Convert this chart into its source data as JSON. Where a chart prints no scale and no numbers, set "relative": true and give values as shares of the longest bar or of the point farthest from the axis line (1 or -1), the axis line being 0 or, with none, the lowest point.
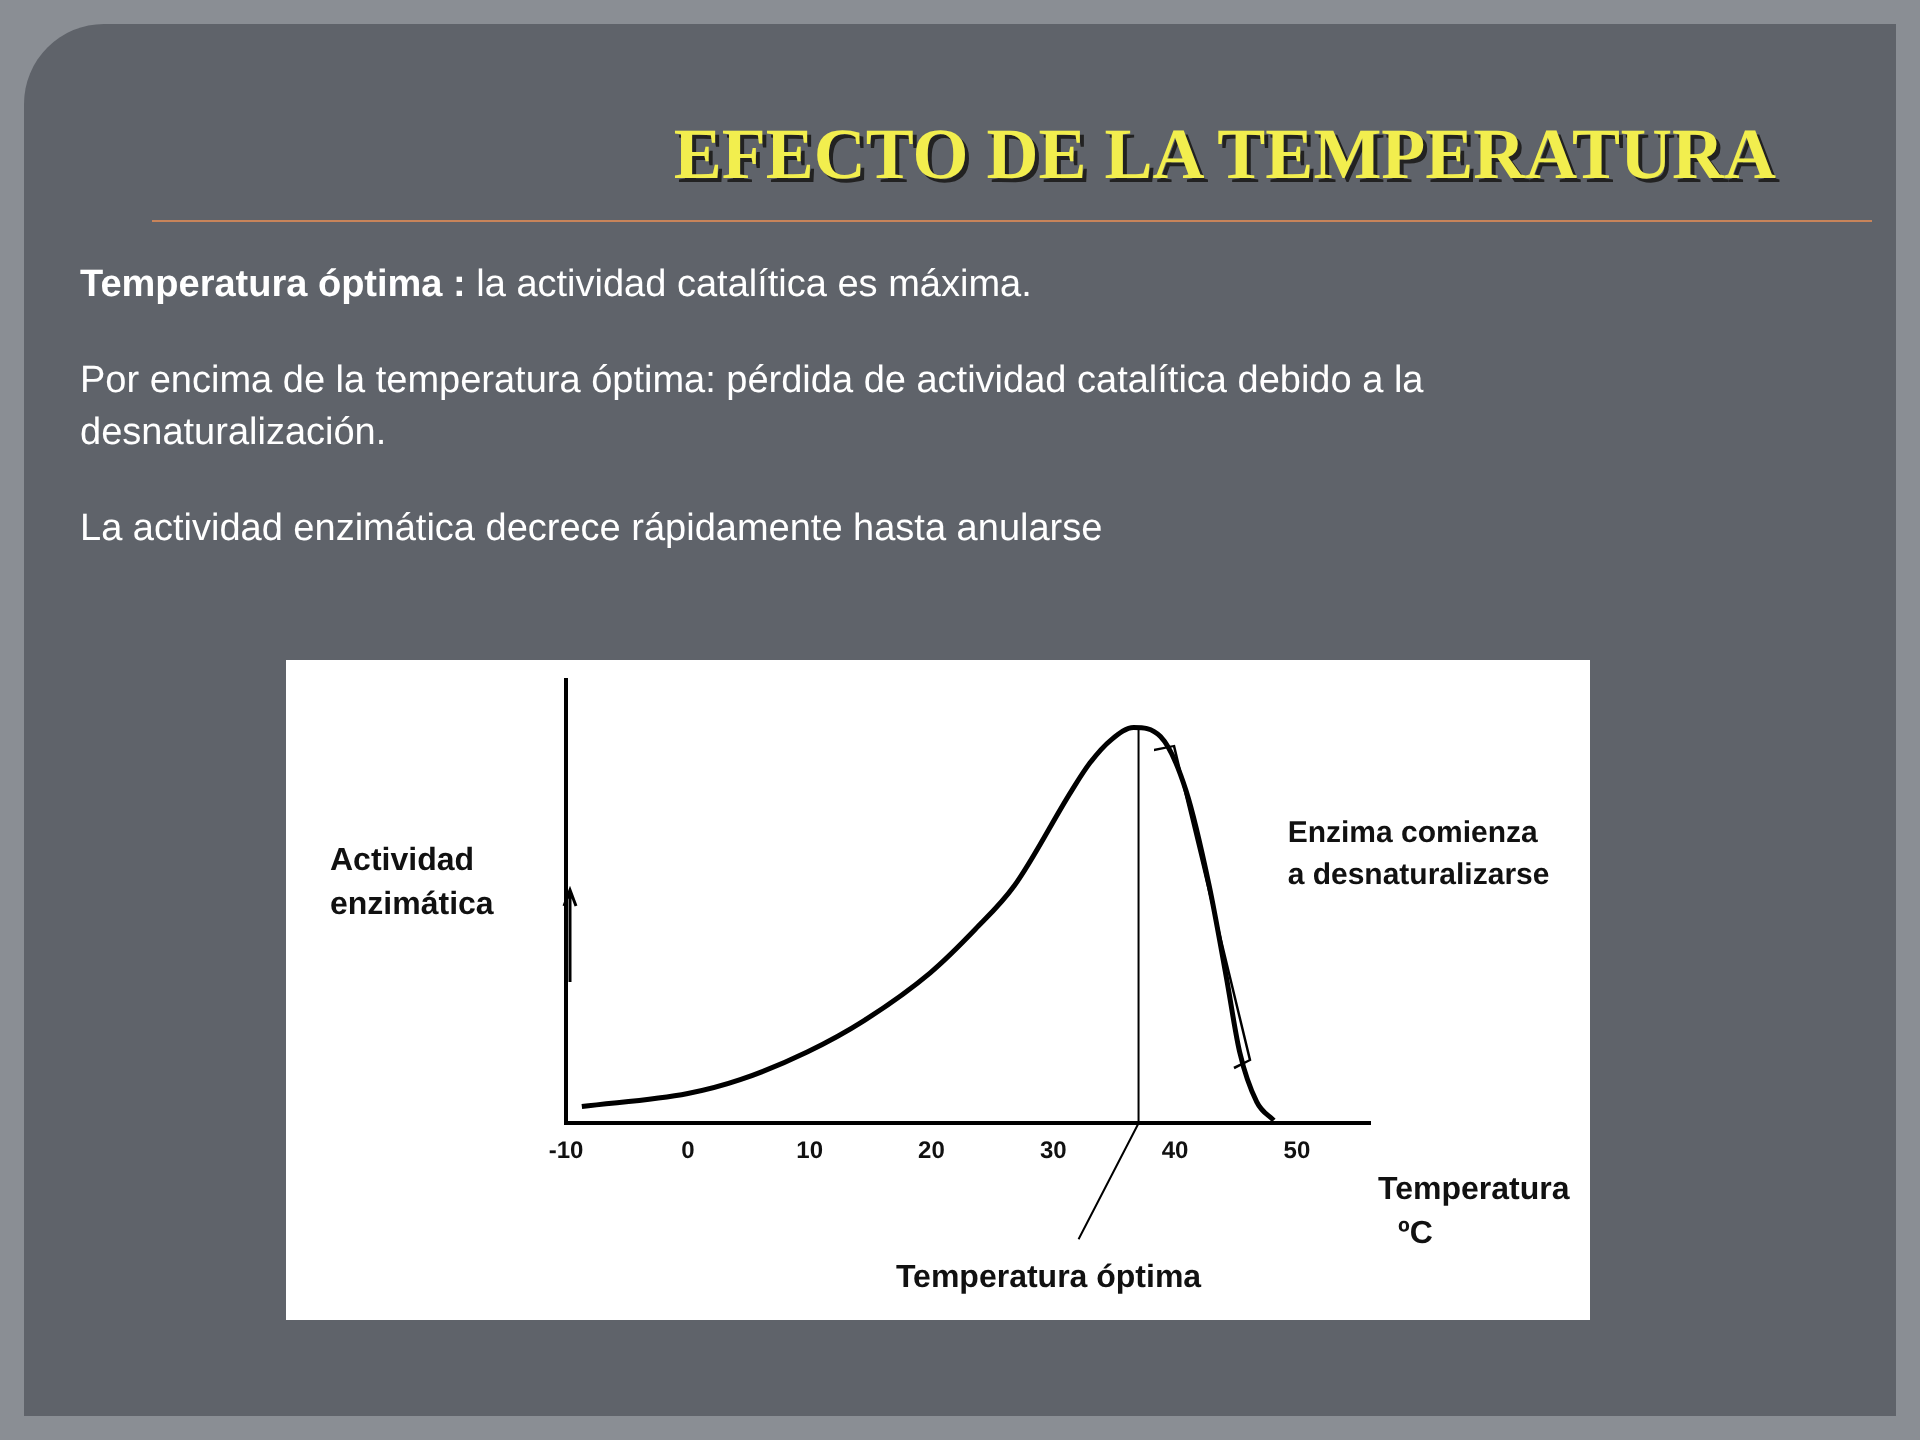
{
  "chart_data": {
    "type": "line",
    "title": "EFECTO DE LA TEMPERATURA",
    "xlabel": "Temperatura ºC",
    "ylabel": "Actividad enzimática",
    "relative": true,
    "annotations": [
      "Temperatura óptima :",
      "la actividad catalítica es máxima.",
      "Por encima de la temperatura óptima: pérdida de actividad catalítica debido a la desnaturalización.",
      "La actividad enzimática decrece rápidamente hasta anularse",
      {
        "text": "Enzima comienza a desnaturalizarse",
        "x": 43,
        "y": 0.6
      }
    ],
    "xlim": [
      -10,
      56
    ],
    "xticks": [
      -10,
      0,
      10,
      20,
      30,
      40,
      50
    ],
    "series": [
      {
        "color": "#000000",
        "x": [
          -8.7,
          0,
          4.3,
          9.8,
          14.5,
          19.9,
          23.6,
          26.8,
          31.5,
          33,
          34.8,
          36.6,
          38.8,
          40.9,
          42.8,
          44.2,
          45.3,
          46.7,
          48.1
        ],
        "values": [
          0.042,
          0.075,
          0.11,
          0.18,
          0.26,
          0.38,
          0.49,
          0.6,
          0.84,
          0.91,
          0.97,
          1,
          0.977,
          0.84,
          0.6,
          0.37,
          0.18,
          0.054,
          0.007
        ]
      }
    ],
    "ref_lines": [
      {
        "axis": "x",
        "value": 37,
        "label": "Temperatura óptima",
        "color": "#000000"
      }
    ],
    "grid": false,
    "legend": false,
    "marker": "none",
    "line_style": "solid"
  }
}
